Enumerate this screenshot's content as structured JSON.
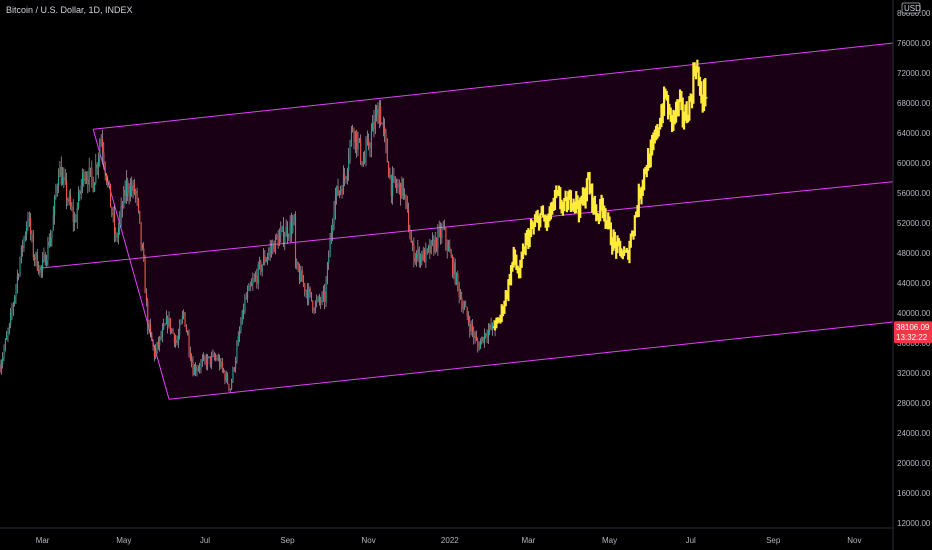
{
  "header": {
    "symbol_title": "Bitcoin / U.S. Dollar, 1D, INDEX"
  },
  "price_axis": {
    "currency": "USD",
    "ticks": [
      "80000.00",
      "76000.00",
      "72000.00",
      "68000.00",
      "64000.00",
      "60000.00",
      "56000.00",
      "52000.00",
      "48000.00",
      "44000.00",
      "40000.00",
      "36000.00",
      "32000.00",
      "28000.00",
      "24000.00",
      "20000.00",
      "16000.00",
      "12000.00"
    ]
  },
  "time_axis": {
    "ticks": [
      "Mar",
      "May",
      "Jul",
      "Sep",
      "Nov",
      "2022",
      "Mar",
      "May",
      "Jul",
      "Sep",
      "Nov"
    ]
  },
  "last_price": {
    "value": "38106.09",
    "countdown": "13:32:22",
    "color": "#f23645"
  },
  "colors": {
    "up": "#26a69a",
    "down": "#ef5350",
    "projection": "#ffeb3b",
    "channel_line": "#e040fb",
    "channel_fill": "#1a0014",
    "background": "#000000"
  },
  "chart_data": {
    "type": "candlestick",
    "ylim": [
      11000,
      81000
    ],
    "x_range": [
      "2021-01-28",
      "2022-11-30"
    ],
    "series": [
      {
        "name": "",
        "kind": "candles",
        "points": [
          {
            "date": "2021-01-28",
            "price": 33000
          },
          {
            "date": "2021-02-04",
            "price": 38000
          },
          {
            "date": "2021-02-11",
            "price": 46000
          },
          {
            "date": "2021-02-18",
            "price": 53000
          },
          {
            "date": "2021-02-22",
            "price": 48000
          },
          {
            "date": "2021-02-28",
            "price": 45500
          },
          {
            "date": "2021-03-08",
            "price": 51000
          },
          {
            "date": "2021-03-13",
            "price": 59500
          },
          {
            "date": "2021-03-25",
            "price": 52000
          },
          {
            "date": "2021-04-01",
            "price": 59000
          },
          {
            "date": "2021-04-08",
            "price": 57500
          },
          {
            "date": "2021-04-14",
            "price": 63500
          },
          {
            "date": "2021-04-25",
            "price": 49500
          },
          {
            "date": "2021-05-03",
            "price": 57000
          },
          {
            "date": "2021-05-10",
            "price": 56000
          },
          {
            "date": "2021-05-16",
            "price": 46000
          },
          {
            "date": "2021-05-19",
            "price": 38500
          },
          {
            "date": "2021-05-24",
            "price": 34500
          },
          {
            "date": "2021-06-03",
            "price": 39000
          },
          {
            "date": "2021-06-10",
            "price": 36000
          },
          {
            "date": "2021-06-15",
            "price": 40000
          },
          {
            "date": "2021-06-22",
            "price": 32500
          },
          {
            "date": "2021-07-01",
            "price": 33500
          },
          {
            "date": "2021-07-10",
            "price": 34000
          },
          {
            "date": "2021-07-20",
            "price": 30000
          },
          {
            "date": "2021-07-31",
            "price": 41500
          },
          {
            "date": "2021-08-14",
            "price": 47000
          },
          {
            "date": "2021-08-23",
            "price": 49500
          },
          {
            "date": "2021-09-06",
            "price": 52000
          },
          {
            "date": "2021-09-07",
            "price": 46000
          },
          {
            "date": "2021-09-21",
            "price": 41000
          },
          {
            "date": "2021-09-29",
            "price": 42000
          },
          {
            "date": "2021-10-06",
            "price": 55000
          },
          {
            "date": "2021-10-14",
            "price": 58000
          },
          {
            "date": "2021-10-20",
            "price": 65000
          },
          {
            "date": "2021-10-28",
            "price": 60000
          },
          {
            "date": "2021-11-09",
            "price": 67500
          },
          {
            "date": "2021-11-18",
            "price": 57000
          },
          {
            "date": "2021-11-27",
            "price": 56500
          },
          {
            "date": "2021-12-04",
            "price": 48000
          },
          {
            "date": "2021-12-14",
            "price": 47500
          },
          {
            "date": "2021-12-27",
            "price": 51000
          },
          {
            "date": "2022-01-05",
            "price": 45000
          },
          {
            "date": "2022-01-10",
            "price": 41500
          },
          {
            "date": "2022-01-22",
            "price": 35500
          },
          {
            "date": "2022-01-28",
            "price": 37500
          },
          {
            "date": "2022-02-04",
            "price": 38106
          }
        ]
      },
      {
        "name": "",
        "kind": "projection",
        "points": [
          {
            "date": "2022-02-04",
            "price": 38106
          },
          {
            "date": "2022-02-08",
            "price": 39500
          },
          {
            "date": "2022-02-13",
            "price": 43000
          },
          {
            "date": "2022-02-18",
            "price": 47500
          },
          {
            "date": "2022-02-22",
            "price": 45000
          },
          {
            "date": "2022-02-27",
            "price": 49500
          },
          {
            "date": "2022-03-05",
            "price": 51500
          },
          {
            "date": "2022-03-10",
            "price": 53000
          },
          {
            "date": "2022-03-15",
            "price": 52000
          },
          {
            "date": "2022-03-22",
            "price": 55500
          },
          {
            "date": "2022-03-28",
            "price": 54000
          },
          {
            "date": "2022-04-03",
            "price": 55500
          },
          {
            "date": "2022-04-09",
            "price": 54000
          },
          {
            "date": "2022-04-15",
            "price": 57500
          },
          {
            "date": "2022-04-21",
            "price": 53000
          },
          {
            "date": "2022-04-26",
            "price": 54500
          },
          {
            "date": "2022-05-02",
            "price": 50000
          },
          {
            "date": "2022-05-07",
            "price": 48500
          },
          {
            "date": "2022-05-14",
            "price": 47500
          },
          {
            "date": "2022-05-21",
            "price": 53500
          },
          {
            "date": "2022-05-27",
            "price": 59000
          },
          {
            "date": "2022-06-02",
            "price": 61500
          },
          {
            "date": "2022-06-08",
            "price": 66000
          },
          {
            "date": "2022-06-12",
            "price": 69000
          },
          {
            "date": "2022-06-16",
            "price": 65500
          },
          {
            "date": "2022-06-22",
            "price": 67500
          },
          {
            "date": "2022-06-27",
            "price": 66000
          },
          {
            "date": "2022-07-01",
            "price": 68500
          },
          {
            "date": "2022-07-05",
            "price": 74000
          },
          {
            "date": "2022-07-08",
            "price": 68500
          },
          {
            "date": "2022-07-12",
            "price": 69500
          }
        ]
      }
    ],
    "channel": {
      "upper": [
        {
          "date": "2021-04-08",
          "price": 64500
        },
        {
          "date": "2022-11-30",
          "price": 76000
        }
      ],
      "middle": [
        {
          "date": "2021-02-28",
          "price": 46000
        },
        {
          "date": "2022-11-30",
          "price": 57500
        }
      ],
      "lower": [
        {
          "date": "2021-06-04",
          "price": 28500
        },
        {
          "date": "2022-11-30",
          "price": 38800
        }
      ]
    },
    "xlabel": "",
    "ylabel": ""
  }
}
